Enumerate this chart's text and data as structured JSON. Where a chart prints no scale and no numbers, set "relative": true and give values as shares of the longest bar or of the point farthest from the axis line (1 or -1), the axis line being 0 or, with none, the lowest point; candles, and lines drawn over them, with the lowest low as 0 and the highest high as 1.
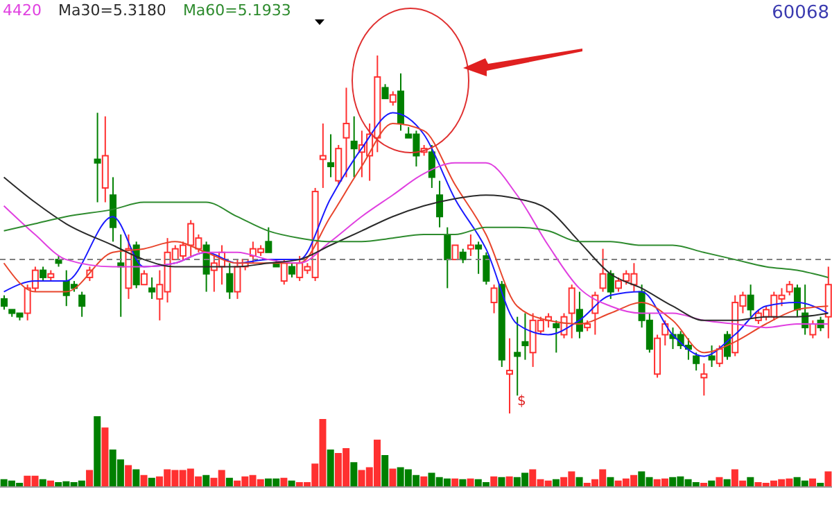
{
  "chart_data": [
    {
      "type": "candlestick",
      "relative": true,
      "tick_labels": false,
      "legend": "top left",
      "categories": [
        null,
        null,
        null,
        null,
        null,
        null,
        null,
        null,
        null,
        null,
        null,
        null,
        null,
        null,
        null,
        null,
        null,
        null,
        null,
        null,
        null,
        null,
        null,
        null,
        null,
        null,
        null,
        null,
        null,
        null,
        null,
        null,
        null,
        null,
        null,
        null,
        null,
        null,
        null,
        null,
        null,
        null,
        null,
        null,
        null,
        null,
        null,
        null,
        null,
        null,
        null,
        null,
        null,
        null,
        null,
        null,
        null,
        null,
        null,
        null,
        null,
        null,
        null,
        null,
        null,
        null,
        null,
        null,
        null,
        null,
        null,
        null,
        null,
        null,
        null,
        null,
        null,
        null,
        null,
        null,
        null,
        null,
        null,
        null,
        null,
        null,
        null,
        null,
        null,
        null,
        null,
        null,
        null,
        null,
        null,
        null,
        null,
        null,
        null,
        null,
        null,
        null,
        null,
        null,
        null,
        null,
        null
      ],
      "ohlc": [
        [
          0.32,
          0.33,
          0.29,
          0.3
        ],
        [
          0.29,
          0.29,
          0.27,
          0.28
        ],
        [
          0.28,
          0.28,
          0.26,
          0.27
        ],
        [
          0.28,
          0.36,
          0.26,
          0.35
        ],
        [
          0.35,
          0.41,
          0.34,
          0.4
        ],
        [
          0.4,
          0.41,
          0.37,
          0.38
        ],
        [
          0.38,
          0.4,
          0.37,
          0.39
        ],
        [
          0.43,
          0.44,
          0.41,
          0.42
        ],
        [
          0.37,
          0.4,
          0.3,
          0.33
        ],
        [
          0.36,
          0.37,
          0.34,
          0.35
        ],
        [
          0.33,
          0.34,
          0.27,
          0.3
        ],
        [
          0.38,
          0.41,
          0.37,
          0.4
        ],
        [
          0.71,
          0.84,
          0.59,
          0.7
        ],
        [
          0.63,
          0.83,
          0.59,
          0.72
        ],
        [
          0.61,
          0.66,
          0.48,
          0.52
        ],
        [
          0.42,
          0.5,
          0.27,
          0.41
        ],
        [
          0.35,
          0.5,
          0.32,
          0.46
        ],
        [
          0.47,
          0.48,
          0.35,
          0.36
        ],
        [
          0.36,
          0.4,
          0.36,
          0.39
        ],
        [
          0.35,
          0.38,
          0.32,
          0.34
        ],
        [
          0.32,
          0.4,
          0.26,
          0.36
        ],
        [
          0.34,
          0.49,
          0.31,
          0.45
        ],
        [
          0.43,
          0.47,
          0.43,
          0.46
        ],
        [
          0.44,
          0.48,
          0.43,
          0.47
        ],
        [
          0.47,
          0.54,
          0.44,
          0.53
        ],
        [
          0.46,
          0.5,
          0.45,
          0.49
        ],
        [
          0.47,
          0.48,
          0.34,
          0.39
        ],
        [
          0.4,
          0.44,
          0.34,
          0.42
        ],
        [
          0.41,
          0.47,
          0.36,
          0.45
        ],
        [
          0.39,
          0.42,
          0.32,
          0.34
        ],
        [
          0.34,
          0.43,
          0.32,
          0.41
        ],
        [
          0.41,
          0.43,
          0.4,
          0.43
        ],
        [
          0.44,
          0.48,
          0.42,
          0.46
        ],
        [
          0.45,
          0.47,
          0.44,
          0.46
        ],
        [
          0.48,
          0.52,
          0.45,
          0.45
        ],
        [
          0.42,
          0.43,
          0.41,
          0.41
        ],
        [
          0.37,
          0.43,
          0.36,
          0.42
        ],
        [
          0.41,
          0.42,
          0.38,
          0.39
        ],
        [
          0.38,
          0.44,
          0.37,
          0.42
        ],
        [
          0.4,
          0.42,
          0.39,
          0.41
        ],
        [
          0.38,
          0.63,
          0.37,
          0.62
        ],
        [
          0.71,
          0.81,
          0.63,
          0.72
        ],
        [
          0.7,
          0.78,
          0.66,
          0.69
        ],
        [
          0.65,
          0.75,
          0.64,
          0.74
        ],
        [
          0.77,
          0.91,
          0.66,
          0.81
        ],
        [
          0.76,
          0.83,
          0.66,
          0.74
        ],
        [
          0.73,
          0.79,
          0.66,
          0.75
        ],
        [
          0.72,
          0.81,
          0.65,
          0.78
        ],
        [
          0.77,
          1.0,
          0.73,
          0.94
        ],
        [
          0.91,
          0.92,
          0.88,
          0.88
        ],
        [
          0.87,
          0.9,
          0.86,
          0.89
        ],
        [
          0.9,
          0.95,
          0.79,
          0.81
        ],
        [
          0.78,
          0.8,
          0.77,
          0.77
        ],
        [
          0.78,
          0.79,
          0.69,
          0.72
        ],
        [
          0.73,
          0.75,
          0.72,
          0.74
        ],
        [
          0.73,
          0.75,
          0.63,
          0.66
        ],
        [
          0.61,
          0.65,
          0.52,
          0.55
        ],
        [
          0.5,
          0.52,
          0.35,
          0.43
        ],
        [
          0.43,
          0.47,
          0.43,
          0.47
        ],
        [
          0.45,
          0.46,
          0.42,
          0.43
        ],
        [
          0.46,
          0.5,
          0.44,
          0.47
        ],
        [
          0.47,
          0.48,
          0.39,
          0.46
        ],
        [
          0.44,
          0.45,
          0.36,
          0.37
        ],
        [
          0.31,
          0.36,
          0.28,
          0.35
        ],
        [
          0.36,
          0.37,
          0.13,
          0.15
        ],
        [
          0.11,
          0.21,
          0,
          0.12
        ],
        [
          0.17,
          0.27,
          0.05,
          0.16
        ],
        [
          0.2,
          0.28,
          0.15,
          0.19
        ],
        [
          0.17,
          0.28,
          0.13,
          0.26
        ],
        [
          0.23,
          0.27,
          0.22,
          0.26
        ],
        [
          0.26,
          0.28,
          0.24,
          0.27
        ],
        [
          0.25,
          0.26,
          0.17,
          0.24
        ],
        [
          0.22,
          0.28,
          0.21,
          0.27
        ],
        [
          0.28,
          0.36,
          0.21,
          0.35
        ],
        [
          0.29,
          0.34,
          0.21,
          0.23
        ],
        [
          0.24,
          0.26,
          0.23,
          0.25
        ],
        [
          0.28,
          0.34,
          0.22,
          0.33
        ],
        [
          0.35,
          0.46,
          0.34,
          0.39
        ],
        [
          0.39,
          0.4,
          0.32,
          0.34
        ],
        [
          0.35,
          0.38,
          0.34,
          0.37
        ],
        [
          0.37,
          0.4,
          0.36,
          0.39
        ],
        [
          0.36,
          0.42,
          0.34,
          0.39
        ],
        [
          0.34,
          0.36,
          0.24,
          0.26
        ],
        [
          0.26,
          0.28,
          0.17,
          0.18
        ],
        [
          0.11,
          0.22,
          0.1,
          0.21
        ],
        [
          0.22,
          0.26,
          0.19,
          0.25
        ],
        [
          0.22,
          0.24,
          0.18,
          0.21
        ],
        [
          0.22,
          0.23,
          0.18,
          0.19
        ],
        [
          0.19,
          0.21,
          0.15,
          0.18
        ],
        [
          0.16,
          0.17,
          0.12,
          0.14
        ],
        [
          0.1,
          0.14,
          0.05,
          0.11
        ],
        [
          0.16,
          0.19,
          0.13,
          0.15
        ],
        [
          0.14,
          0.19,
          0.13,
          0.18
        ],
        [
          0.22,
          0.23,
          0.15,
          0.16
        ],
        [
          0.17,
          0.33,
          0.16,
          0.31
        ],
        [
          0.3,
          0.34,
          0.28,
          0.33
        ],
        [
          0.33,
          0.36,
          0.27,
          0.29
        ],
        [
          0.26,
          0.29,
          0.25,
          0.28
        ],
        [
          0.27,
          0.3,
          0.26,
          0.29
        ],
        [
          0.27,
          0.34,
          0.26,
          0.33
        ],
        [
          0.32,
          0.35,
          0.3,
          0.33
        ],
        [
          0.34,
          0.37,
          0.33,
          0.36
        ],
        [
          0.35,
          0.36,
          0.27,
          0.29
        ],
        [
          0.28,
          0.36,
          0.22,
          0.24
        ],
        [
          0.22,
          0.26,
          0.21,
          0.25
        ],
        [
          0.26,
          0.27,
          0.23,
          0.24
        ],
        [
          0.27,
          0.41,
          0.21,
          0.36
        ]
      ],
      "series": [
        {
          "type": "line",
          "color": "#1a1aff",
          "values": [
            0.34,
            null,
            null,
            null,
            0.37,
            null,
            null,
            null,
            0.37,
            null,
            null,
            null,
            null,
            null,
            0.55,
            null,
            null,
            null,
            0.41,
            null,
            null,
            null,
            0.42,
            null,
            null,
            null,
            0.45,
            null,
            null,
            null,
            0.42,
            null,
            null,
            null,
            0.43,
            null,
            null,
            null,
            0.43,
            null,
            null,
            null,
            0.6,
            null,
            null,
            null,
            0.74,
            null,
            null,
            null,
            0.84,
            null,
            null,
            null,
            0.78,
            null,
            null,
            null,
            0.6,
            null,
            null,
            null,
            0.46,
            null,
            null,
            null,
            0.25,
            null,
            null,
            null,
            0.22,
            null,
            null,
            null,
            0.26,
            null,
            null,
            null,
            0.33,
            null,
            null,
            null,
            0.34,
            null,
            null,
            null,
            0.22,
            null,
            null,
            null,
            0.16,
            null,
            null,
            null,
            0.22,
            null,
            null,
            null,
            0.3,
            null,
            null,
            null,
            0.31,
            null,
            null,
            null,
            0.28
          ]
        },
        {
          "type": "line",
          "color": "#e8452c",
          "values": [
            0.42,
            null,
            null,
            null,
            0.34,
            null,
            null,
            null,
            0.34,
            null,
            null,
            null,
            null,
            null,
            0.45,
            null,
            null,
            null,
            0.46,
            null,
            null,
            null,
            0.48,
            null,
            null,
            null,
            0.45,
            null,
            null,
            null,
            0.42,
            null,
            null,
            null,
            0.42,
            null,
            null,
            null,
            0.42,
            null,
            null,
            null,
            0.55,
            null,
            null,
            null,
            0.69,
            null,
            null,
            null,
            0.81,
            null,
            null,
            null,
            0.79,
            null,
            null,
            null,
            0.64,
            null,
            null,
            null,
            0.5,
            null,
            null,
            null,
            0.3,
            null,
            null,
            null,
            0.26,
            null,
            null,
            null,
            0.25,
            null,
            null,
            null,
            0.28,
            null,
            null,
            null,
            0.31,
            null,
            null,
            null,
            0.26,
            null,
            null,
            null,
            0.17,
            null,
            null,
            null,
            0.2,
            null,
            null,
            null,
            0.25,
            null,
            null,
            null,
            0.29,
            null,
            null,
            null,
            0.3
          ]
        },
        {
          "type": "line",
          "name": "4420",
          "color": "#e040e0",
          "values": [
            0.58,
            null,
            null,
            null,
            0.5,
            null,
            null,
            null,
            0.43,
            null,
            null,
            null,
            null,
            null,
            0.41,
            null,
            null,
            null,
            0.41,
            null,
            null,
            null,
            0.42,
            null,
            null,
            null,
            0.45,
            null,
            null,
            null,
            0.45,
            null,
            null,
            null,
            0.43,
            null,
            null,
            null,
            0.42,
            null,
            null,
            null,
            0.48,
            null,
            null,
            null,
            0.55,
            null,
            null,
            null,
            0.61,
            null,
            null,
            null,
            0.67,
            null,
            null,
            null,
            0.7,
            null,
            null,
            null,
            0.7,
            null,
            null,
            null,
            0.61,
            null,
            null,
            null,
            0.47,
            null,
            null,
            null,
            0.35,
            null,
            null,
            null,
            0.3,
            null,
            null,
            null,
            0.28,
            null,
            null,
            null,
            0.28,
            null,
            null,
            null,
            0.26,
            null,
            null,
            null,
            0.25,
            null,
            null,
            null,
            0.24,
            null,
            null,
            null,
            0.25,
            null,
            null,
            null,
            0.25
          ]
        },
        {
          "type": "line",
          "name": "Ma30=5.3180",
          "color": "#2a2a2a",
          "values": [
            0.66,
            null,
            null,
            null,
            0.59,
            null,
            null,
            null,
            0.53,
            null,
            null,
            null,
            null,
            null,
            0.47,
            null,
            null,
            null,
            0.43,
            null,
            null,
            null,
            0.41,
            null,
            null,
            null,
            0.41,
            null,
            null,
            null,
            0.41,
            null,
            null,
            null,
            0.42,
            null,
            null,
            null,
            0.43,
            null,
            null,
            null,
            0.47,
            null,
            null,
            null,
            0.51,
            null,
            null,
            null,
            0.55,
            null,
            null,
            null,
            0.58,
            null,
            null,
            null,
            0.6,
            null,
            null,
            null,
            0.61,
            null,
            null,
            null,
            0.6,
            null,
            null,
            null,
            0.57,
            null,
            null,
            null,
            0.48,
            null,
            null,
            null,
            0.39,
            null,
            null,
            null,
            0.35,
            null,
            null,
            null,
            0.3,
            null,
            null,
            null,
            0.26,
            null,
            null,
            null,
            0.26,
            null,
            null,
            null,
            0.27,
            null,
            null,
            null,
            0.27,
            null,
            null,
            null,
            0.28
          ]
        },
        {
          "type": "line",
          "name": "Ma60=5.1933",
          "color": "#2e8b2e",
          "values": [
            0.51,
            null,
            null,
            null,
            0.53,
            null,
            null,
            null,
            0.55,
            null,
            null,
            null,
            null,
            null,
            0.57,
            null,
            null,
            null,
            0.59,
            null,
            null,
            null,
            0.59,
            null,
            null,
            null,
            0.59,
            null,
            null,
            null,
            0.55,
            null,
            null,
            null,
            0.51,
            null,
            null,
            null,
            0.49,
            null,
            null,
            null,
            0.48,
            null,
            null,
            null,
            0.48,
            null,
            null,
            null,
            0.49,
            null,
            null,
            null,
            0.5,
            null,
            null,
            null,
            0.5,
            null,
            null,
            null,
            0.52,
            null,
            null,
            null,
            0.52,
            null,
            null,
            null,
            0.51,
            null,
            null,
            null,
            0.48,
            null,
            null,
            null,
            0.48,
            null,
            null,
            null,
            0.47,
            null,
            null,
            null,
            0.47,
            null,
            null,
            null,
            0.45,
            null,
            null,
            null,
            0.43,
            null,
            null,
            null,
            0.41,
            null,
            null,
            null,
            0.4,
            null,
            null,
            null,
            0.38
          ]
        }
      ],
      "ref_lines": [
        {
          "axis": "y",
          "value": 0.43,
          "color": "#808080",
          "line_style": "dashed"
        }
      ],
      "annotations": [
        "60068",
        "$"
      ]
    },
    {
      "type": "bar",
      "relative": true,
      "tick_labels": false,
      "categories": [
        null,
        null,
        null,
        null,
        null,
        null,
        null,
        null,
        null,
        null,
        null,
        null,
        null,
        null,
        null,
        null,
        null,
        null,
        null,
        null,
        null,
        null,
        null,
        null,
        null,
        null,
        null,
        null,
        null,
        null,
        null,
        null,
        null,
        null,
        null,
        null,
        null,
        null,
        null,
        null,
        null,
        null,
        null,
        null,
        null,
        null,
        null,
        null,
        null,
        null,
        null,
        null,
        null,
        null,
        null,
        null,
        null,
        null,
        null,
        null,
        null,
        null,
        null,
        null,
        null,
        null,
        null,
        null,
        null,
        null,
        null,
        null,
        null,
        null,
        null,
        null,
        null,
        null,
        null,
        null,
        null,
        null,
        null,
        null,
        null,
        null,
        null,
        null,
        null,
        null,
        null,
        null,
        null,
        null,
        null,
        null,
        null,
        null,
        null,
        null,
        null,
        null,
        null,
        null,
        null,
        null,
        null
      ],
      "values": [
        0.1,
        0.08,
        0.05,
        0.15,
        0.15,
        0.1,
        0.08,
        0.06,
        0.07,
        0.06,
        0.08,
        0.23,
        1,
        0.83,
        0.52,
        0.38,
        0.3,
        0.24,
        0.16,
        0.12,
        0.14,
        0.24,
        0.23,
        0.23,
        0.25,
        0.14,
        0.16,
        0.12,
        0.23,
        0.12,
        0.08,
        0.14,
        0.16,
        0.1,
        0.11,
        0.11,
        0.12,
        0.08,
        0.06,
        0.06,
        0.32,
        0.95,
        0.52,
        0.47,
        0.54,
        0.34,
        0.23,
        0.27,
        0.66,
        0.44,
        0.25,
        0.27,
        0.24,
        0.16,
        0.14,
        0.19,
        0.13,
        0.11,
        0.11,
        0.1,
        0.11,
        0.1,
        0.06,
        0.14,
        0.13,
        0.14,
        0.13,
        0.19,
        0.24,
        0.1,
        0.08,
        0.1,
        0.13,
        0.21,
        0.13,
        0.05,
        0.1,
        0.24,
        0.13,
        0.08,
        0.11,
        0.16,
        0.21,
        0.13,
        0.1,
        0.11,
        0.13,
        0.14,
        0.1,
        0.06,
        0.05,
        0.08,
        0.13,
        0.1,
        0.24,
        0.08,
        0.13,
        0.06,
        0.05,
        0.08,
        0.1,
        0.11,
        0.13,
        0.08,
        0.11,
        0.05,
        0.21
      ],
      "colors": [
        "#008000",
        "#008000",
        "#008000",
        "#ff3030",
        "#ff3030",
        "#008000",
        "#ff3030",
        "#008000",
        "#008000",
        "#008000",
        "#008000",
        "#ff3030",
        "#008000",
        "#ff3030",
        "#008000",
        "#008000",
        "#ff3030",
        "#008000",
        "#ff3030",
        "#008000",
        "#ff3030",
        "#ff3030",
        "#ff3030",
        "#ff3030",
        "#ff3030",
        "#ff3030",
        "#008000",
        "#ff3030",
        "#ff3030",
        "#008000",
        "#ff3030",
        "#ff3030",
        "#ff3030",
        "#ff3030",
        "#008000",
        "#008000",
        "#ff3030",
        "#008000",
        "#ff3030",
        "#ff3030",
        "#ff3030",
        "#ff3030",
        "#008000",
        "#ff3030",
        "#ff3030",
        "#008000",
        "#ff3030",
        "#ff3030",
        "#ff3030",
        "#008000",
        "#ff3030",
        "#008000",
        "#008000",
        "#008000",
        "#ff3030",
        "#008000",
        "#008000",
        "#008000",
        "#ff3030",
        "#008000",
        "#ff3030",
        "#008000",
        "#008000",
        "#ff3030",
        "#008000",
        "#ff3030",
        "#008000",
        "#008000",
        "#ff3030",
        "#ff3030",
        "#ff3030",
        "#008000",
        "#ff3030",
        "#ff3030",
        "#008000",
        "#ff3030",
        "#ff3030",
        "#ff3030",
        "#008000",
        "#ff3030",
        "#ff3030",
        "#ff3030",
        "#008000",
        "#008000",
        "#ff3030",
        "#ff3030",
        "#008000",
        "#008000",
        "#008000",
        "#008000",
        "#ff3030",
        "#008000",
        "#ff3030",
        "#008000",
        "#ff3030",
        "#ff3030",
        "#008000",
        "#ff3030",
        "#ff3030",
        "#ff3030",
        "#ff3030",
        "#ff3030",
        "#008000",
        "#008000",
        "#ff3030",
        "#008000",
        "#ff3030"
      ]
    }
  ]
}
